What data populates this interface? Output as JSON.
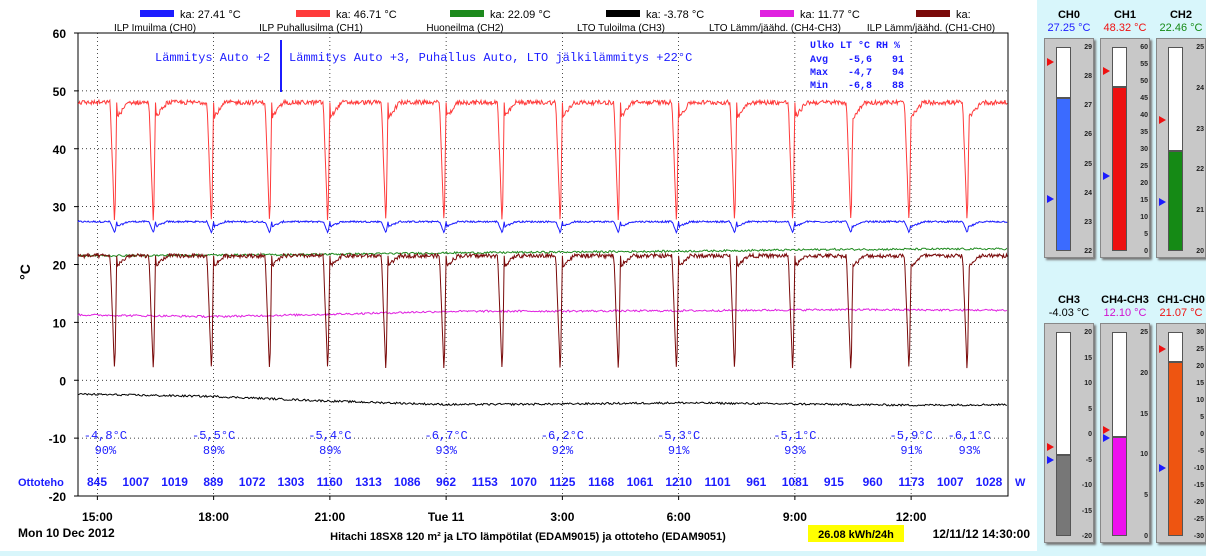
{
  "legend": [
    {
      "label": "ILP Imuilma (CH0)",
      "avg": "ka: 27.41 °C",
      "color": "#1c1cff"
    },
    {
      "label": "ILP Puhallusilma (CH1)",
      "avg": "ka: 46.71 °C",
      "color": "#ff3b3b"
    },
    {
      "label": "Huoneilma (CH2)",
      "avg": "ka: 22.09 °C",
      "color": "#1d8a1d"
    },
    {
      "label": "LTO Tuloilma (CH3)",
      "avg": "ka: -3.78 °C",
      "color": "#000000"
    },
    {
      "label": "LTO Lämm/jäähd. (CH4-CH3)",
      "avg": "ka: 11.77 °C",
      "color": "#e020e0"
    },
    {
      "label": "ILP Lämm/jäähd. (CH1-CH0)",
      "avg": "ka:",
      "color": "#7a0a0a"
    }
  ],
  "annotations": {
    "mode1": "Lämmitys Auto +2",
    "mode2": "Lämmitys Auto +3, Puhallus Auto, LTO jälkilämmitys +22°C"
  },
  "stats": {
    "header": "Ulko LT °C RH %",
    "rows": [
      {
        "label": "Avg",
        "temp": "-5,6",
        "rh": "91"
      },
      {
        "label": "Max",
        "temp": "-4,7",
        "rh": "94"
      },
      {
        "label": "Min",
        "temp": "-6,8",
        "rh": "88"
      }
    ]
  },
  "outdoor": [
    {
      "x": 15.0,
      "temp": "-4,8°C",
      "rh": "90%"
    },
    {
      "x": 18.0,
      "temp": "-5,5°C",
      "rh": "89%"
    },
    {
      "x": 21.0,
      "temp": "-5,4°C",
      "rh": "89%"
    },
    {
      "x": 24.0,
      "temp": "-6,7°C",
      "rh": "93%"
    },
    {
      "x": 27.0,
      "temp": "-6,2°C",
      "rh": "92%"
    },
    {
      "x": 30.0,
      "temp": "-5,3°C",
      "rh": "91%"
    },
    {
      "x": 33.0,
      "temp": "-5,1°C",
      "rh": "93%"
    },
    {
      "x": 36.0,
      "temp": "-5,9°C",
      "rh": "91%"
    },
    {
      "x": 37.5,
      "temp": "-6,1°C",
      "rh": "93%"
    }
  ],
  "ottoteho": {
    "label": "Ottoteho",
    "unit": "W",
    "values": [
      "845",
      "1007",
      "1019",
      "889",
      "1072",
      "1303",
      "1160",
      "1313",
      "1086",
      "962",
      "1153",
      "1070",
      "1125",
      "1168",
      "1061",
      "1210",
      "1101",
      "961",
      "1081",
      "915",
      "960",
      "1173",
      "1007",
      "1028"
    ]
  },
  "footer": {
    "date": "Mon 10 Dec 2012",
    "title": "Hitachi 18SX8 120 m² ja LTO lämpötilat (EDAM9015) ja ottoteho (EDAM9051)",
    "energy": "26.08 kWh/24h",
    "timestamp": "12/11/12 14:30:00"
  },
  "chart_data": {
    "type": "line",
    "ylabel": "°C",
    "ylim": [
      -20,
      60
    ],
    "yticks": [
      -20,
      -10,
      0,
      10,
      20,
      30,
      40,
      50,
      60
    ],
    "xlim": [
      14.5,
      38.5
    ],
    "xticks": [
      {
        "x": 15,
        "label": "15:00"
      },
      {
        "x": 18,
        "label": "18:00"
      },
      {
        "x": 21,
        "label": "21:00"
      },
      {
        "x": 24,
        "label": "Tue 11"
      },
      {
        "x": 27,
        "label": "3:00"
      },
      {
        "x": 30,
        "label": "6:00"
      },
      {
        "x": 33,
        "label": "9:00"
      },
      {
        "x": 36,
        "label": "12:00"
      }
    ],
    "grid": true,
    "defrost_times": [
      15.45,
      16.45,
      17.95,
      19.45,
      20.95,
      22.45,
      23.95,
      25.45,
      26.95,
      28.45,
      29.95,
      31.45,
      32.95,
      34.45,
      35.95,
      37.45
    ],
    "series": [
      {
        "name": "ILP Imuilma (CH0)",
        "color": "#1c1cff",
        "base": 27.4,
        "amp": 1.0,
        "dip": 2.0,
        "noise": 0.15
      },
      {
        "name": "ILP Puhallusilma (CH1)",
        "color": "#ff3b3b",
        "base": 48.0,
        "amp": 3.0,
        "dip": 22.0,
        "noise": 0.4
      },
      {
        "name": "Huoneilma (CH2)",
        "color": "#1d8a1d",
        "values": [
          [
            14.5,
            21.5
          ],
          [
            20,
            21.7
          ],
          [
            24,
            22.0
          ],
          [
            30,
            22.3
          ],
          [
            34,
            22.6
          ],
          [
            38.5,
            22.7
          ]
        ]
      },
      {
        "name": "LTO Tuloilma (CH3)",
        "color": "#000000",
        "values": [
          [
            14.5,
            -2.4
          ],
          [
            18,
            -2.8
          ],
          [
            21,
            -3.6
          ],
          [
            24,
            -4.2
          ],
          [
            27,
            -4.1
          ],
          [
            30,
            -3.9
          ],
          [
            33,
            -4.1
          ],
          [
            36,
            -4.3
          ],
          [
            38.5,
            -4.2
          ]
        ]
      },
      {
        "name": "LTO Lämm/jäähd. (CH4-CH3)",
        "color": "#e020e0",
        "values": [
          [
            14.5,
            11.3
          ],
          [
            18,
            11.0
          ],
          [
            21,
            11.4
          ],
          [
            24,
            11.9
          ],
          [
            30,
            12.0
          ],
          [
            34,
            12.2
          ],
          [
            38.5,
            12.1
          ]
        ]
      },
      {
        "name": "ILP Lämm/jäähd. (CH1-CH0)",
        "color": "#7a0a0a",
        "base": 21.5,
        "amp": 2.0,
        "dip": 21.0,
        "noise": 0.35
      }
    ]
  },
  "gauges": [
    {
      "name": "CH0",
      "value": "27.25 °C",
      "color": "#3b6bff",
      "valcolor": "#1c1cff",
      "min": 22,
      "max": 29,
      "current": 27.25,
      "red": 28.5,
      "blue": 23.8,
      "ticks": [
        "29",
        "28",
        "27",
        "26",
        "25",
        "24",
        "23",
        "22"
      ]
    },
    {
      "name": "CH1",
      "value": "48.32 °C",
      "color": "#ee1111",
      "valcolor": "#ee1111",
      "min": 0,
      "max": 60,
      "current": 48.32,
      "red": 53,
      "blue": 22,
      "ticks": [
        "60",
        "55",
        "50",
        "45",
        "40",
        "35",
        "30",
        "25",
        "20",
        "15",
        "10",
        "5",
        "0"
      ]
    },
    {
      "name": "CH2",
      "value": "22.46 °C",
      "color": "#158a15",
      "valcolor": "#158a15",
      "min": 20,
      "max": 25,
      "current": 22.46,
      "red": 23.2,
      "blue": 21.2,
      "ticks": [
        "25",
        "24",
        "23",
        "22",
        "21",
        "20"
      ]
    },
    {
      "name": "CH3",
      "value": "-4.03 °C",
      "color": "#777777",
      "valcolor": "#000000",
      "min": -20,
      "max": 20,
      "current": -4.03,
      "red": -2.5,
      "blue": -5.0,
      "ticks": [
        "20",
        "15",
        "10",
        "5",
        "0",
        "-5",
        "-10",
        "-15",
        "-20"
      ]
    },
    {
      "name": "CH4-CH3",
      "value": "12.10 °C",
      "color": "#ee11ee",
      "valcolor": "#d010d0",
      "min": 0,
      "max": 25,
      "current": 12.1,
      "red": 13,
      "blue": 12,
      "ticks": [
        "25",
        "20",
        "15",
        "10",
        "5",
        "0"
      ]
    },
    {
      "name": "CH1-CH0",
      "value": "21.07 °C",
      "color": "#ee5511",
      "valcolor": "#ee1111",
      "min": -30,
      "max": 30,
      "current": 21.07,
      "red": 25,
      "blue": -10,
      "ticks": [
        "30",
        "25",
        "20",
        "15",
        "10",
        "5",
        "0",
        "-5",
        "-10",
        "-15",
        "-20",
        "-25",
        "-30"
      ]
    }
  ]
}
